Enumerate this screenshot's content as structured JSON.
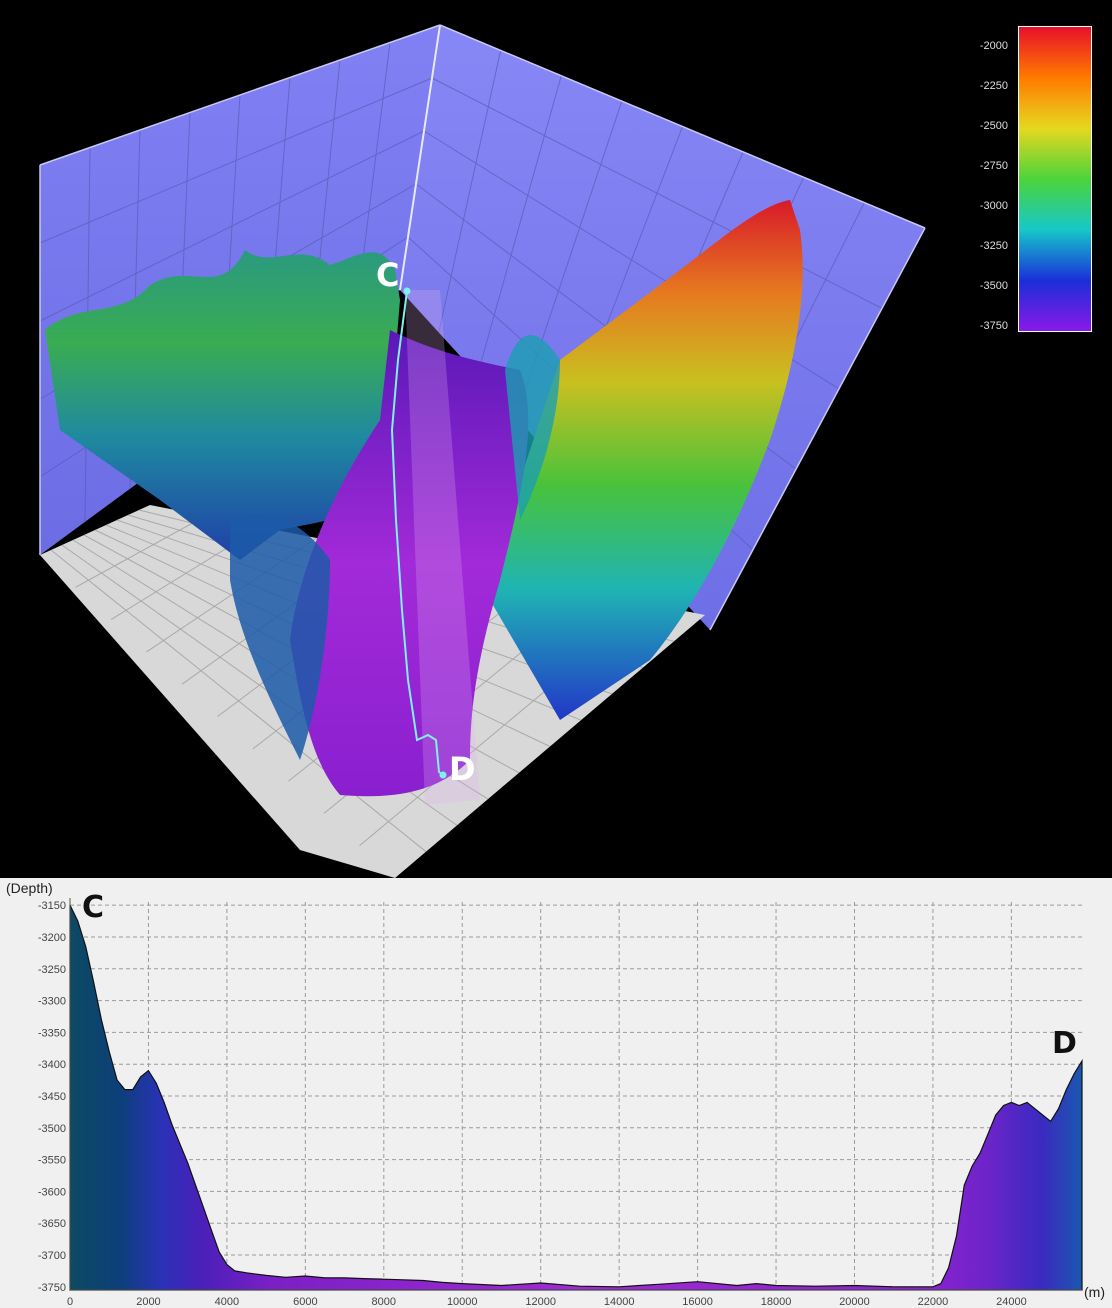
{
  "colorbar": {
    "ticks": [
      "-2000",
      "-2250",
      "-2500",
      "-2750",
      "-3000",
      "-3250",
      "-3500",
      "-3750"
    ],
    "colors": [
      "#e8102a",
      "#ff7a00",
      "#e6d820",
      "#4cd43a",
      "#16c8c8",
      "#1a2fd8",
      "#8b19e8"
    ]
  },
  "surface": {
    "start_label": "C",
    "end_label": "D",
    "wall_color": "#7d7df2",
    "floor_color": "#d8d8d8",
    "line_color": "#7ff0f0"
  },
  "profile": {
    "y_unit": "(Depth)",
    "x_unit": "(m)",
    "start_label": "C",
    "end_label": "D"
  },
  "chart_data": {
    "type": "area",
    "title": "",
    "xlabel": "(m)",
    "ylabel": "(Depth)",
    "xlim": [
      0,
      25800
    ],
    "ylim": [
      -3755,
      -3145
    ],
    "xticks": [
      0,
      2000,
      4000,
      6000,
      8000,
      10000,
      12000,
      14000,
      16000,
      18000,
      20000,
      22000,
      24000
    ],
    "yticks": [
      -3150,
      -3200,
      -3250,
      -3300,
      -3350,
      -3400,
      -3450,
      -3500,
      -3550,
      -3600,
      -3650,
      -3700,
      -3750
    ],
    "grid": true,
    "x": [
      0,
      200,
      400,
      600,
      800,
      1000,
      1200,
      1400,
      1600,
      1800,
      2000,
      2200,
      2400,
      2600,
      2800,
      3000,
      3200,
      3400,
      3600,
      3800,
      4000,
      4200,
      4500,
      5000,
      5500,
      6000,
      6500,
      7000,
      7500,
      8000,
      8500,
      9000,
      9500,
      10000,
      11000,
      12000,
      13000,
      14000,
      15000,
      16000,
      17000,
      17500,
      18000,
      19000,
      20000,
      21000,
      22000,
      22200,
      22400,
      22600,
      22800,
      23000,
      23200,
      23400,
      23600,
      23800,
      24000,
      24200,
      24400,
      24600,
      24800,
      25000,
      25200,
      25400,
      25600,
      25800
    ],
    "y": [
      -3150,
      -3175,
      -3215,
      -3270,
      -3330,
      -3380,
      -3425,
      -3440,
      -3440,
      -3420,
      -3410,
      -3430,
      -3460,
      -3495,
      -3525,
      -3555,
      -3590,
      -3625,
      -3660,
      -3695,
      -3715,
      -3725,
      -3728,
      -3732,
      -3735,
      -3733,
      -3736,
      -3736,
      -3737,
      -3738,
      -3739,
      -3740,
      -3743,
      -3745,
      -3748,
      -3744,
      -3749,
      -3750,
      -3746,
      -3742,
      -3748,
      -3745,
      -3748,
      -3749,
      -3748,
      -3750,
      -3750,
      -3745,
      -3720,
      -3670,
      -3590,
      -3560,
      -3540,
      -3510,
      -3480,
      -3465,
      -3460,
      -3465,
      -3460,
      -3470,
      -3480,
      -3490,
      -3470,
      -3440,
      -3415,
      -3395
    ],
    "series": []
  }
}
